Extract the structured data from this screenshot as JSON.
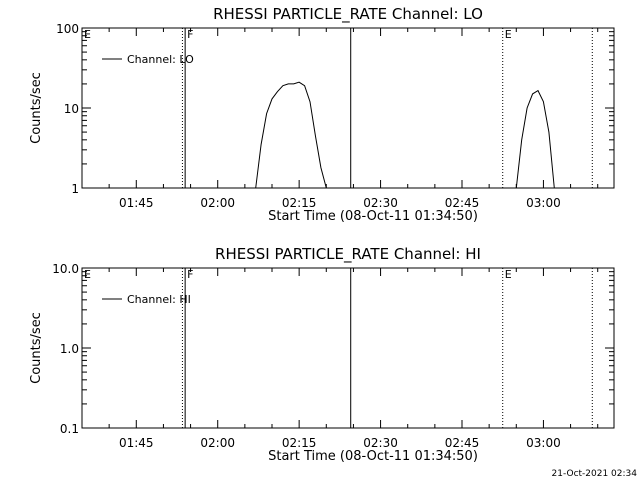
{
  "footer": {
    "timestamp": "21-Oct-2021 02:34"
  },
  "chart_data": [
    {
      "type": "line",
      "title": "RHESSI PARTICLE_RATE Channel: LO",
      "xlabel": "Start Time (08-Oct-11 01:34:50)",
      "ylabel": "Counts/sec",
      "y_scale": "log",
      "ylim": [
        1,
        100
      ],
      "y_ticks": [
        "1",
        "10",
        "100"
      ],
      "x_ticks": [
        "01:45",
        "02:00",
        "02:15",
        "02:30",
        "02:45",
        "03:00"
      ],
      "legend": {
        "placement": "top-left",
        "entry": "Channel: LO"
      },
      "markers": [
        {
          "time": "01:35",
          "label": "E",
          "style": "dotted"
        },
        {
          "time": "01:53.5",
          "label": "",
          "style": "dotted"
        },
        {
          "time": "01:54",
          "label": "F",
          "style": "solid"
        },
        {
          "time": "02:24.5",
          "label": "",
          "style": "solid"
        },
        {
          "time": "02:52.5",
          "label": "E",
          "style": "dotted"
        },
        {
          "time": "03:09",
          "label": "",
          "style": "dotted"
        }
      ],
      "series": [
        {
          "name": "Channel: LO",
          "segments": [
            {
              "x": [
                "02:07",
                "02:08",
                "02:09",
                "02:10",
                "02:11",
                "02:12",
                "02:13",
                "02:14",
                "02:15",
                "02:16",
                "02:17",
                "02:18",
                "02:19",
                "02:20"
              ],
              "y": [
                1,
                3.5,
                8.5,
                13,
                16,
                19,
                20,
                20,
                21,
                19,
                12,
                4.5,
                1.8,
                1
              ]
            },
            {
              "x": [
                "02:55",
                "02:56",
                "02:57",
                "02:58",
                "02:59",
                "03:00",
                "03:01",
                "03:02"
              ],
              "y": [
                1,
                4,
                10,
                15,
                16.5,
                12,
                5,
                1
              ]
            }
          ]
        }
      ]
    },
    {
      "type": "line",
      "title": "RHESSI PARTICLE_RATE Channel: HI",
      "xlabel": "Start Time (08-Oct-11 01:34:50)",
      "ylabel": "Counts/sec",
      "y_scale": "log",
      "ylim": [
        0.1,
        10
      ],
      "y_ticks": [
        "0.1",
        "1.0",
        "10.0"
      ],
      "x_ticks": [
        "01:45",
        "02:00",
        "02:15",
        "02:30",
        "02:45",
        "03:00"
      ],
      "legend": {
        "placement": "top-left",
        "entry": "Channel: HI"
      },
      "markers": [
        {
          "time": "01:35",
          "label": "E",
          "style": "dotted"
        },
        {
          "time": "01:53.5",
          "label": "",
          "style": "dotted"
        },
        {
          "time": "01:54",
          "label": "F",
          "style": "solid"
        },
        {
          "time": "02:24.5",
          "label": "",
          "style": "solid"
        },
        {
          "time": "02:52.5",
          "label": "E",
          "style": "dotted"
        },
        {
          "time": "03:09",
          "label": "",
          "style": "dotted"
        }
      ],
      "series": [
        {
          "name": "Channel: HI",
          "segments": []
        }
      ]
    }
  ]
}
